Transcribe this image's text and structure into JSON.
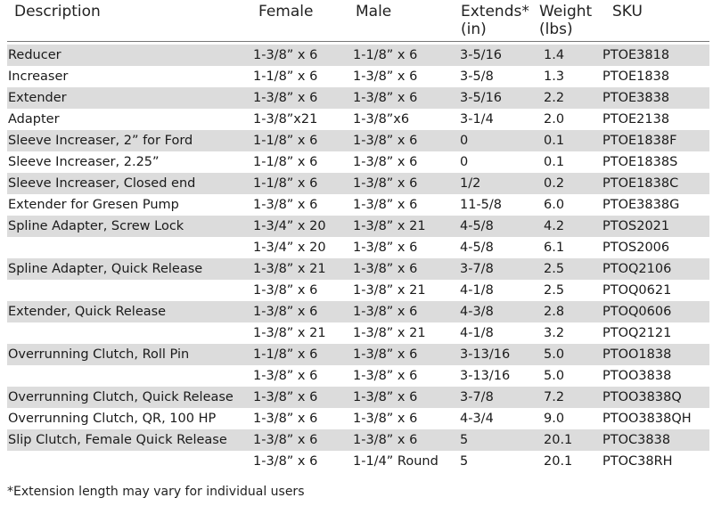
{
  "headers": {
    "description": "Description",
    "female": "Female",
    "male": "Male",
    "extends_line1": "Extends*",
    "extends_line2": "(in)",
    "weight_line1": "Weight",
    "weight_line2": "(lbs)",
    "sku": "SKU"
  },
  "rows": [
    {
      "description": "Reducer",
      "female": "1-3/8” x 6",
      "male": "1-1/8” x 6",
      "extends": "3-5/16",
      "weight": "1.4",
      "sku": "PTOE3818"
    },
    {
      "description": "Increaser",
      "female": "1-1/8” x 6",
      "male": "1-3/8” x 6",
      "extends": "3-5/8",
      "weight": "1.3",
      "sku": "PTOE1838"
    },
    {
      "description": "Extender",
      "female": "1-3/8” x 6",
      "male": "1-3/8” x 6",
      "extends": "3-5/16",
      "weight": "2.2",
      "sku": "PTOE3838"
    },
    {
      "description": "Adapter",
      "female": "1-3/8”x21",
      "male": "1-3/8”x6",
      "extends": "3-1/4",
      "weight": "2.0",
      "sku": "PTOE2138"
    },
    {
      "description": "Sleeve Increaser, 2” for Ford",
      "female": "1-1/8” x 6",
      "male": "1-3/8” x 6",
      "extends": "0",
      "weight": "0.1",
      "sku": "PTOE1838F"
    },
    {
      "description": "Sleeve Increaser, 2.25”",
      "female": "1-1/8” x 6",
      "male": "1-3/8” x 6",
      "extends": "0",
      "weight": "0.1",
      "sku": "PTOE1838S"
    },
    {
      "description": "Sleeve Increaser, Closed end",
      "female": "1-1/8” x 6",
      "male": "1-3/8” x 6",
      "extends": "1/2",
      "weight": "0.2",
      "sku": "PTOE1838C"
    },
    {
      "description": "Extender for Gresen Pump",
      "female": "1-3/8” x 6",
      "male": "1-3/8” x 6",
      "extends": "11-5/8",
      "weight": "6.0",
      "sku": "PTOE3838G"
    },
    {
      "description": "Spline Adapter, Screw Lock",
      "female": "1-3/4” x 20",
      "male": "1-3/8” x 21",
      "extends": "4-5/8",
      "weight": "4.2",
      "sku": "PTOS2021"
    },
    {
      "description": "",
      "female": "1-3/4” x 20",
      "male": "1-3/8” x 6",
      "extends": "4-5/8",
      "weight": "6.1",
      "sku": "PTOS2006"
    },
    {
      "description": "Spline Adapter, Quick Release",
      "female": "1-3/8” x 21",
      "male": "1-3/8” x 6",
      "extends": "3-7/8",
      "weight": "2.5",
      "sku": "PTOQ2106"
    },
    {
      "description": "",
      "female": "1-3/8” x 6",
      "male": "1-3/8” x 21",
      "extends": "4-1/8",
      "weight": "2.5",
      "sku": "PTOQ0621"
    },
    {
      "description": "Extender, Quick Release",
      "female": "1-3/8” x 6",
      "male": "1-3/8” x 6",
      "extends": "4-3/8",
      "weight": "2.8",
      "sku": "PTOQ0606"
    },
    {
      "description": "",
      "female": "1-3/8” x 21",
      "male": "1-3/8” x 21",
      "extends": "4-1/8",
      "weight": "3.2",
      "sku": "PTOQ2121"
    },
    {
      "description": "Overrunning Clutch, Roll Pin",
      "female": "1-1/8” x 6",
      "male": "1-3/8” x 6",
      "extends": "3-13/16",
      "weight": "5.0",
      "sku": "PTOO1838"
    },
    {
      "description": "",
      "female": "1-3/8” x 6",
      "male": "1-3/8” x 6",
      "extends": "3-13/16",
      "weight": "5.0",
      "sku": "PTOO3838"
    },
    {
      "description": "Overrunning Clutch, Quick Release",
      "female": "1-3/8” x 6",
      "male": "1-3/8” x 6",
      "extends": "3-7/8",
      "weight": "7.2",
      "sku": "PTOO3838Q"
    },
    {
      "description": "Overrunning Clutch, QR, 100 HP",
      "female": "1-3/8” x 6",
      "male": "1-3/8” x 6",
      "extends": "4-3/4",
      "weight": "9.0",
      "sku": "PTOO3838QH"
    },
    {
      "description": "Slip Clutch, Female Quick Release",
      "female": "1-3/8” x 6",
      "male": "1-3/8” x 6",
      "extends": "5",
      "weight": "20.1",
      "sku": "PTOC3838"
    },
    {
      "description": "",
      "female": "1-3/8” x 6",
      "male": "1-1/4” Round",
      "extends": "5",
      "weight": "20.1",
      "sku": "PTOC38RH"
    }
  ],
  "footnote": "*Extension length may vary for individual users"
}
